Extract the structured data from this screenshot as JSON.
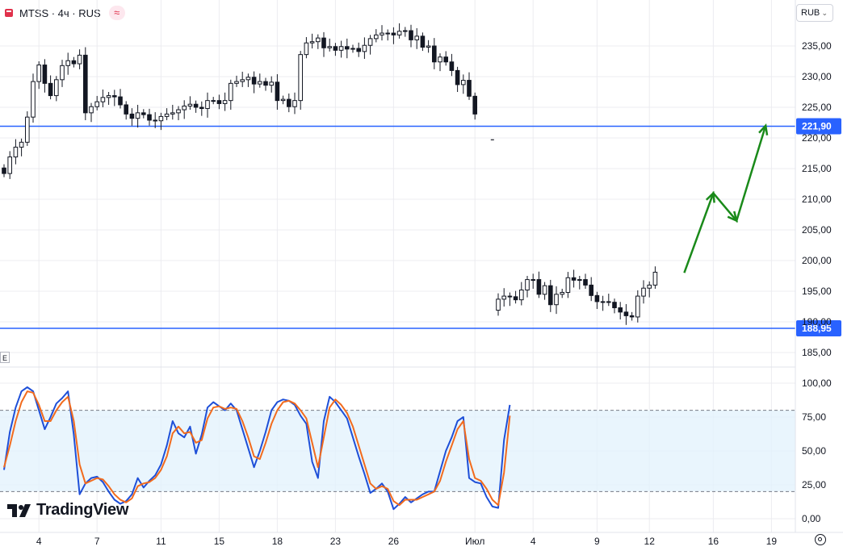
{
  "header": {
    "symbol": "MTSS · 4ч · RUS",
    "symbol_icon": "exchange-flag-icon",
    "compare_icon": "approx-icon",
    "compare_glyph": "≈"
  },
  "currency": {
    "label": "RUB",
    "chevron": "⌄"
  },
  "pane_button": {
    "label": "E"
  },
  "branding": {
    "name": "TradingView"
  },
  "colors": {
    "up": "#131722",
    "down": "#131722",
    "level": "#2962ff",
    "arrow": "#1a8a1a",
    "k_line": "#1e4fd8",
    "d_line": "#f26b1d",
    "band": "#e3f2fd",
    "band_line": "#787b86",
    "grid": "#ececf0"
  },
  "chart_data": [
    {
      "type": "candlestick",
      "title": "",
      "y_axis": {
        "min": 183,
        "max": 238,
        "ticks": [
          185,
          190,
          195,
          200,
          205,
          210,
          215,
          220,
          225,
          230,
          235
        ],
        "tick_labels": [
          "185,00",
          "190,00",
          "195,00",
          "200,00",
          "205,00",
          "210,00",
          "215,00",
          "220,00",
          "225,00",
          "230,00",
          "235,00"
        ]
      },
      "x_axis": {
        "labels": [
          "4",
          "7",
          "11",
          "15",
          "18",
          "23",
          "26",
          "Июл",
          "4",
          "9",
          "12",
          "16",
          "19"
        ],
        "label_index": [
          6,
          16,
          27,
          37,
          47,
          57,
          67,
          81,
          91,
          102,
          111,
          122,
          132
        ]
      },
      "price_levels": [
        {
          "value": 221.9,
          "label": "221,90"
        },
        {
          "value": 188.95,
          "label": "188,95"
        }
      ],
      "closes": [
        214.2,
        216.9,
        218.5,
        219.3,
        223.4,
        229.2,
        231.9,
        228.9,
        226.9,
        229.5,
        231.8,
        232.6,
        232.1,
        233.5,
        224.1,
        225.1,
        225.9,
        226.6,
        226.9,
        226.7,
        225.4,
        223.9,
        223.2,
        224.1,
        223.8,
        222.9,
        222.8,
        223.5,
        223.9,
        224.1,
        224.6,
        225.2,
        225.5,
        225.0,
        224.8,
        226.1,
        226.1,
        225.6,
        226.1,
        228.9,
        229.2,
        229.5,
        229.9,
        228.8,
        229.2,
        228.6,
        229.1,
        226.1,
        226.3,
        225.1,
        226.1,
        233.6,
        235.5,
        235.7,
        236.3,
        234.7,
        234.9,
        234.3,
        234.9,
        234.5,
        234.6,
        234.1,
        235.1,
        236.2,
        236.8,
        237.1,
        237.1,
        236.8,
        237.4,
        237.5,
        236.0,
        236.6,
        234.8,
        235.0,
        232.4,
        233.2,
        232.4,
        231.0,
        228.7,
        229.4,
        226.8,
        223.9,
        null,
        null,
        null,
        193.7,
        194.2,
        194.1,
        193.6,
        195.2,
        196.9,
        196.9,
        194.5,
        195.9,
        192.8,
        194.5,
        194.8,
        197.2,
        196.8,
        196.9,
        196.0,
        194.3,
        193.3,
        193.3,
        193.2,
        192.3,
        191.6,
        191.0,
        190.8,
        194.2,
        195.5,
        196.0,
        198.1
      ],
      "opens": [
        215.1,
        214.2,
        216.9,
        218.5,
        219.3,
        223.4,
        229.2,
        231.9,
        228.9,
        226.9,
        229.5,
        231.8,
        232.6,
        232.1,
        233.5,
        224.1,
        225.1,
        225.9,
        226.6,
        226.9,
        226.7,
        225.4,
        223.9,
        223.2,
        224.1,
        223.8,
        222.9,
        222.8,
        223.5,
        223.9,
        224.1,
        224.6,
        225.2,
        225.5,
        225.0,
        224.8,
        226.1,
        226.1,
        225.6,
        226.1,
        228.9,
        229.2,
        229.5,
        229.9,
        228.8,
        229.2,
        228.6,
        229.1,
        226.1,
        226.3,
        225.1,
        226.1,
        233.6,
        235.5,
        235.7,
        236.3,
        234.7,
        234.9,
        234.3,
        234.9,
        234.5,
        234.6,
        234.1,
        235.1,
        236.2,
        236.8,
        237.1,
        237.1,
        236.8,
        237.4,
        237.5,
        236.0,
        236.6,
        234.8,
        235.0,
        232.4,
        233.2,
        232.4,
        231.0,
        228.7,
        229.4,
        226.8,
        null,
        null,
        null,
        191.9,
        193.7,
        194.2,
        194.1,
        193.6,
        195.2,
        196.9,
        196.9,
        194.5,
        195.9,
        192.8,
        194.5,
        194.8,
        197.2,
        196.8,
        196.9,
        196.0,
        194.3,
        193.3,
        193.3,
        193.2,
        192.3,
        191.6,
        191.0,
        190.8,
        194.2,
        195.5,
        196.0
      ],
      "isolated_marks": [
        {
          "index": 84,
          "value": 219.7
        }
      ],
      "projection_arrow": [
        {
          "index": 117,
          "value": 198.0
        },
        {
          "index": 122,
          "value": 211.0
        },
        {
          "index": 126,
          "value": 206.5
        },
        {
          "index": 131,
          "value": 222.0
        }
      ]
    },
    {
      "type": "line",
      "title": "",
      "y_axis": {
        "min": -5,
        "max": 105,
        "ticks": [
          0,
          25,
          50,
          75,
          100
        ],
        "tick_labels": [
          "0,00",
          "25,00",
          "50,00",
          "75,00",
          "100,00"
        ]
      },
      "band": {
        "lower": 20,
        "upper": 80
      },
      "series": [
        {
          "name": "",
          "role": "k",
          "values": [
            36,
            64,
            82,
            94,
            97,
            94,
            80,
            66,
            75,
            85,
            89,
            94,
            62,
            18,
            26,
            30,
            31,
            27,
            20,
            14,
            11,
            13,
            18,
            30,
            23,
            28,
            32,
            40,
            54,
            72,
            63,
            60,
            68,
            48,
            62,
            82,
            86,
            83,
            80,
            85,
            80,
            66,
            52,
            38,
            50,
            64,
            80,
            86,
            88,
            87,
            84,
            76,
            70,
            42,
            30,
            72,
            90,
            86,
            80,
            74,
            60,
            46,
            33,
            19,
            22,
            26,
            20,
            7,
            11,
            16,
            12,
            15,
            18,
            20,
            20,
            35,
            50,
            60,
            72,
            75,
            30,
            27,
            26,
            16,
            9,
            8,
            58,
            84
          ]
        },
        {
          "name": "",
          "role": "d",
          "values": [
            38,
            54,
            72,
            86,
            94,
            93,
            84,
            72,
            72,
            80,
            86,
            90,
            72,
            40,
            26,
            28,
            30,
            29,
            24,
            18,
            14,
            12,
            15,
            24,
            26,
            27,
            30,
            36,
            46,
            63,
            68,
            63,
            64,
            56,
            58,
            74,
            82,
            83,
            81,
            82,
            81,
            72,
            60,
            46,
            44,
            56,
            70,
            80,
            86,
            87,
            85,
            80,
            74,
            56,
            38,
            60,
            82,
            88,
            84,
            78,
            68,
            54,
            40,
            26,
            22,
            24,
            22,
            13,
            10,
            14,
            14,
            14,
            16,
            18,
            20,
            28,
            42,
            54,
            66,
            72,
            44,
            30,
            28,
            22,
            14,
            10,
            34,
            76
          ]
        }
      ],
      "x_start_index": 0
    }
  ]
}
